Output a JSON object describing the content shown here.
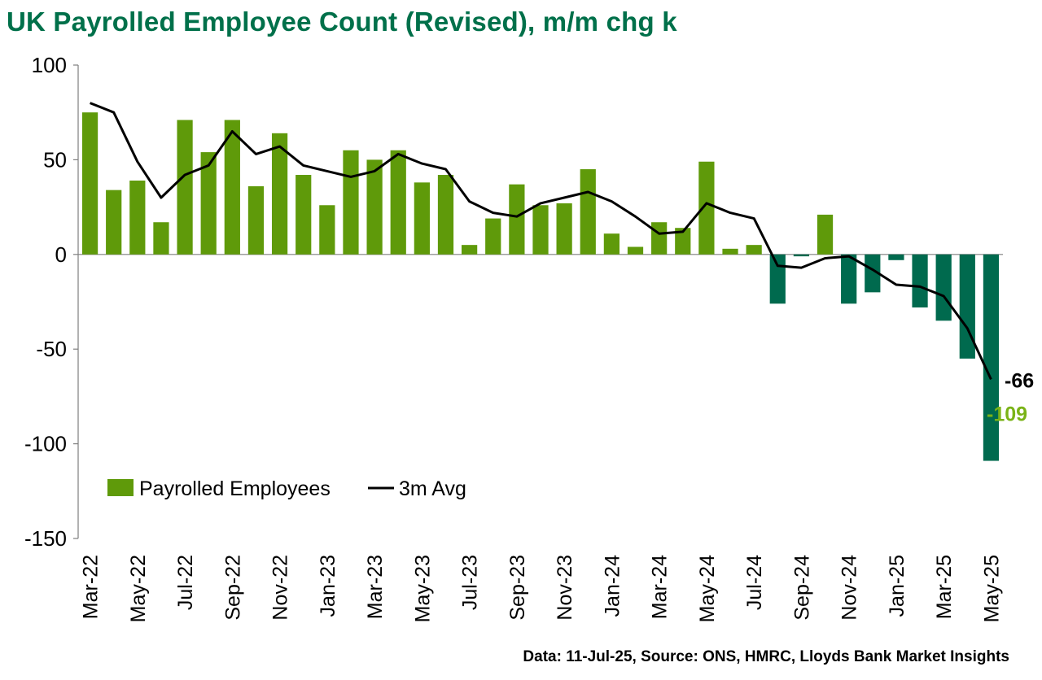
{
  "chart_data": {
    "type": "bar",
    "title": "UK Payrolled Employee Count (Revised), m/m chg k",
    "source": "Data: 11-Jul-25, Source: ONS, HMRC, Lloyds Bank Market Insights",
    "ylim": [
      -150,
      100
    ],
    "yticks": [
      "100",
      "50",
      "0",
      "-50",
      "-100",
      "-150"
    ],
    "x": [
      "Mar-22",
      "Apr-22",
      "May-22",
      "Jun-22",
      "Jul-22",
      "Aug-22",
      "Sep-22",
      "Oct-22",
      "Nov-22",
      "Dec-22",
      "Jan-23",
      "Feb-23",
      "Mar-23",
      "Apr-23",
      "May-23",
      "Jun-23",
      "Jul-23",
      "Aug-23",
      "Sep-23",
      "Oct-23",
      "Nov-23",
      "Dec-23",
      "Jan-24",
      "Feb-24",
      "Mar-24",
      "Apr-24",
      "May-24",
      "Jun-24",
      "Jul-24",
      "Aug-24",
      "Sep-24",
      "Oct-24",
      "Nov-24",
      "Dec-24",
      "Jan-25",
      "Feb-25",
      "Mar-25",
      "Apr-25",
      "May-25"
    ],
    "xtick_labels": [
      "Mar-22",
      "May-22",
      "Jul-22",
      "Sep-22",
      "Nov-22",
      "Jan-23",
      "Mar-23",
      "May-23",
      "Jul-23",
      "Sep-23",
      "Nov-23",
      "Jan-24",
      "Mar-24",
      "May-24",
      "Jul-24",
      "Sep-24",
      "Nov-24",
      "Jan-25",
      "Mar-25",
      "May-25"
    ],
    "series": [
      {
        "name": "Payrolled Employees",
        "kind": "bar",
        "color_pos": "#5f9a0a",
        "color_neg": "#006a4e",
        "values": [
          75,
          34,
          39,
          17,
          71,
          54,
          71,
          36,
          64,
          42,
          26,
          55,
          50,
          55,
          38,
          42,
          5,
          19,
          37,
          26,
          27,
          45,
          11,
          4,
          17,
          14,
          49,
          3,
          5,
          -26,
          -1,
          21,
          -26,
          -20,
          -3,
          -28,
          -35,
          -55,
          -109
        ]
      },
      {
        "name": "3m Avg",
        "kind": "line",
        "color": "#000000",
        "values": [
          80,
          75,
          49,
          30,
          42,
          47,
          65,
          53,
          57,
          47,
          44,
          41,
          44,
          53,
          48,
          45,
          28,
          22,
          20,
          27,
          30,
          33,
          28,
          20,
          11,
          12,
          27,
          22,
          19,
          -6,
          -7,
          -2,
          -1,
          -8,
          -16,
          -17,
          -22,
          -39,
          -66
        ]
      }
    ],
    "end_labels": [
      {
        "text": "-66",
        "color": "#000000"
      },
      {
        "text": "-109",
        "color": "#7ab317"
      }
    ],
    "legend": {
      "position": "bottom-left",
      "bar_label": "Payrolled Employees",
      "line_label": "3m Avg"
    },
    "grid": false
  }
}
